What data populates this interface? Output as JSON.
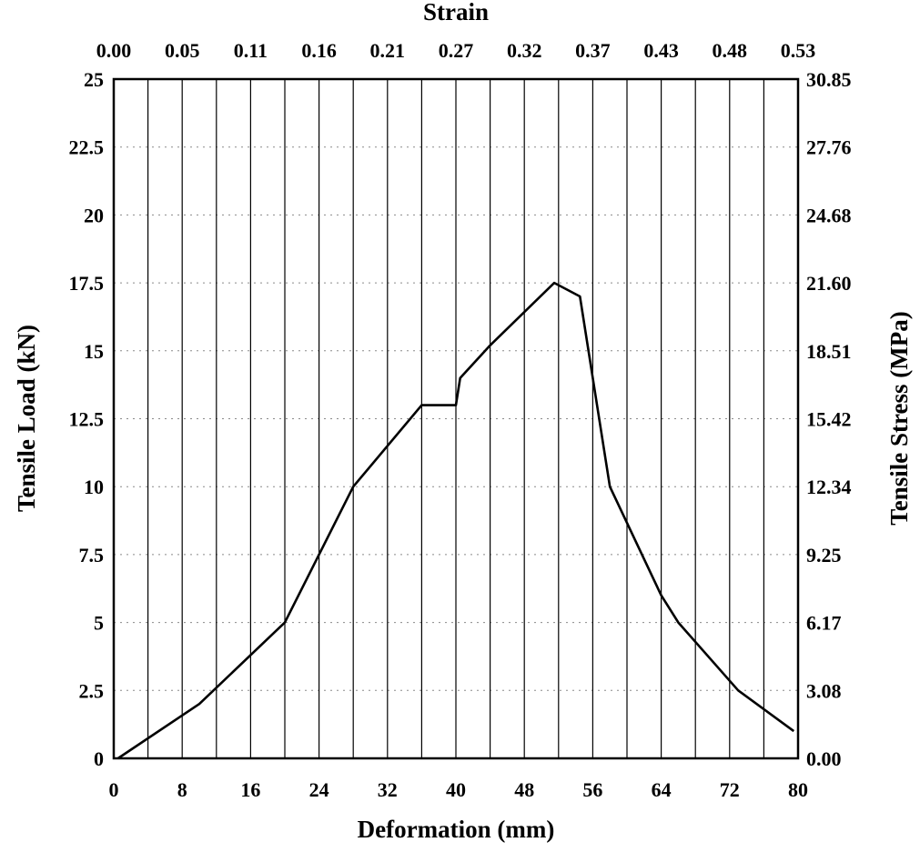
{
  "chart_data": {
    "type": "line",
    "title": "",
    "xlabel": "Deformation (mm)",
    "ylabel": "Tensile Load (kN)",
    "x2label": "Strain",
    "y2label": "Tensile Stress (MPa)",
    "xlim": [
      0,
      80
    ],
    "ylim": [
      0,
      25
    ],
    "x_ticks": [
      0,
      8,
      16,
      24,
      32,
      40,
      48,
      56,
      64,
      72,
      80
    ],
    "x_tick_labels": [
      "0",
      "8",
      "16",
      "24",
      "32",
      "40",
      "48",
      "56",
      "64",
      "72",
      "80"
    ],
    "y_ticks": [
      0,
      2.5,
      5,
      7.5,
      10,
      12.5,
      15,
      17.5,
      20,
      22.5,
      25
    ],
    "y_tick_labels": [
      "0",
      "2.5",
      "5",
      "7.5",
      "10",
      "12.5",
      "15",
      "17.5",
      "20",
      "22.5",
      "25"
    ],
    "x2_tick_labels": [
      "0.00",
      "0.05",
      "0.11",
      "0.16",
      "0.21",
      "0.27",
      "0.32",
      "0.37",
      "0.43",
      "0.48",
      "0.53"
    ],
    "y2_tick_labels": [
      "0.00",
      "3.08",
      "6.17",
      "9.25",
      "12.34",
      "15.42",
      "18.51",
      "21.60",
      "24.68",
      "27.76",
      "30.85"
    ],
    "vertical_grid_x": [
      4,
      8,
      12,
      16,
      20,
      24,
      28,
      32,
      36,
      40,
      44,
      48,
      52,
      56,
      60,
      64,
      68,
      72,
      76
    ],
    "grid": true,
    "legend": "none",
    "series": [
      {
        "name": "Tensile Load",
        "x": [
          0.5,
          10,
          20,
          28,
          36,
          40,
          40.5,
          44,
          51.5,
          54.5,
          55.5,
          58,
          64,
          66,
          73,
          79.5
        ],
        "y": [
          0,
          2,
          5,
          10,
          13,
          13,
          14,
          15.2,
          17.5,
          17,
          15,
          10,
          6,
          5,
          2.5,
          1
        ]
      }
    ]
  }
}
